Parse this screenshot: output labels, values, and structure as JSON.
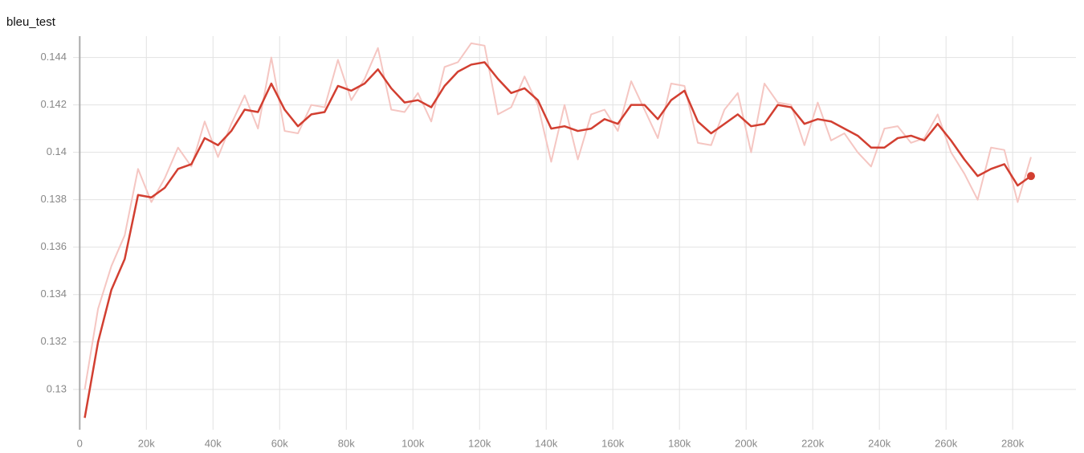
{
  "chart_data": {
    "type": "line",
    "title": "bleu_test",
    "x": [
      1500,
      5500,
      9500,
      13500,
      17500,
      21500,
      25500,
      29500,
      33500,
      37500,
      41500,
      45500,
      49500,
      53500,
      57500,
      61500,
      65500,
      69500,
      73500,
      77500,
      81500,
      85500,
      89500,
      93500,
      97500,
      101500,
      105500,
      109500,
      113500,
      117500,
      121500,
      125500,
      129500,
      133500,
      137500,
      141500,
      145500,
      149500,
      153500,
      157500,
      161500,
      165500,
      169500,
      173500,
      177500,
      181500,
      185500,
      189500,
      193500,
      197500,
      201500,
      205500,
      209500,
      213500,
      217500,
      221500,
      225500,
      229500,
      233500,
      237500,
      241500,
      245500,
      249500,
      253500,
      257500,
      261500,
      265500,
      269500,
      273500,
      277500,
      281500,
      285500
    ],
    "series": [
      {
        "color": "#f5c6c2",
        "values": [
          0.13,
          0.1334,
          0.1352,
          0.1365,
          0.1393,
          0.1379,
          0.1389,
          0.1402,
          0.1394,
          0.1413,
          0.1398,
          0.1412,
          0.1424,
          0.141,
          0.144,
          0.1409,
          0.1408,
          0.142,
          0.1419,
          0.1439,
          0.1422,
          0.1431,
          0.1444,
          0.1418,
          0.1417,
          0.1425,
          0.1413,
          0.1436,
          0.1438,
          0.1446,
          0.1445,
          0.1416,
          0.1419,
          0.1432,
          0.142,
          0.1396,
          0.142,
          0.1397,
          0.1416,
          0.1418,
          0.1409,
          0.143,
          0.1418,
          0.1406,
          0.1429,
          0.1428,
          0.1404,
          0.1403,
          0.1418,
          0.1425,
          0.14,
          0.1429,
          0.1421,
          0.142,
          0.1403,
          0.1421,
          0.1405,
          0.1408,
          0.14,
          0.1394,
          0.141,
          0.1411,
          0.1404,
          0.1406,
          0.1416,
          0.14,
          0.1391,
          0.138,
          0.1402,
          0.1401,
          0.1379,
          0.1398
        ]
      },
      {
        "color": "#d23f31",
        "values": [
          0.1288,
          0.132,
          0.1342,
          0.1355,
          0.1382,
          0.1381,
          0.1385,
          0.1393,
          0.1395,
          0.1406,
          0.1403,
          0.1409,
          0.1418,
          0.1417,
          0.1429,
          0.1418,
          0.1411,
          0.1416,
          0.1417,
          0.1428,
          0.1426,
          0.1429,
          0.1435,
          0.1427,
          0.1421,
          0.1422,
          0.1419,
          0.1428,
          0.1434,
          0.1437,
          0.1438,
          0.1431,
          0.1425,
          0.1427,
          0.1422,
          0.141,
          0.1411,
          0.1409,
          0.141,
          0.1414,
          0.1412,
          0.142,
          0.142,
          0.1414,
          0.1422,
          0.1426,
          0.1413,
          0.1408,
          0.1412,
          0.1416,
          0.1411,
          0.1412,
          0.142,
          0.1419,
          0.1412,
          0.1414,
          0.1413,
          0.141,
          0.1407,
          0.1402,
          0.1402,
          0.1406,
          0.1407,
          0.1405,
          0.1412,
          0.1405,
          0.1397,
          0.139,
          0.1393,
          0.1395,
          0.1386,
          0.139
        ]
      }
    ],
    "xlim": [
      -2000,
      299000
    ],
    "ylim": [
      0.1283,
      0.1449
    ],
    "xticks": [
      {
        "value": 0,
        "label": "0"
      },
      {
        "value": 20000,
        "label": "20k"
      },
      {
        "value": 40000,
        "label": "40k"
      },
      {
        "value": 60000,
        "label": "60k"
      },
      {
        "value": 80000,
        "label": "80k"
      },
      {
        "value": 100000,
        "label": "100k"
      },
      {
        "value": 120000,
        "label": "120k"
      },
      {
        "value": 140000,
        "label": "140k"
      },
      {
        "value": 160000,
        "label": "160k"
      },
      {
        "value": 180000,
        "label": "180k"
      },
      {
        "value": 200000,
        "label": "200k"
      },
      {
        "value": 220000,
        "label": "220k"
      },
      {
        "value": 240000,
        "label": "240k"
      },
      {
        "value": 260000,
        "label": "260k"
      },
      {
        "value": 280000,
        "label": "280k"
      }
    ],
    "yticks": [
      0.13,
      0.132,
      0.134,
      0.136,
      0.138,
      0.14,
      0.142,
      0.144
    ],
    "grid": true
  }
}
